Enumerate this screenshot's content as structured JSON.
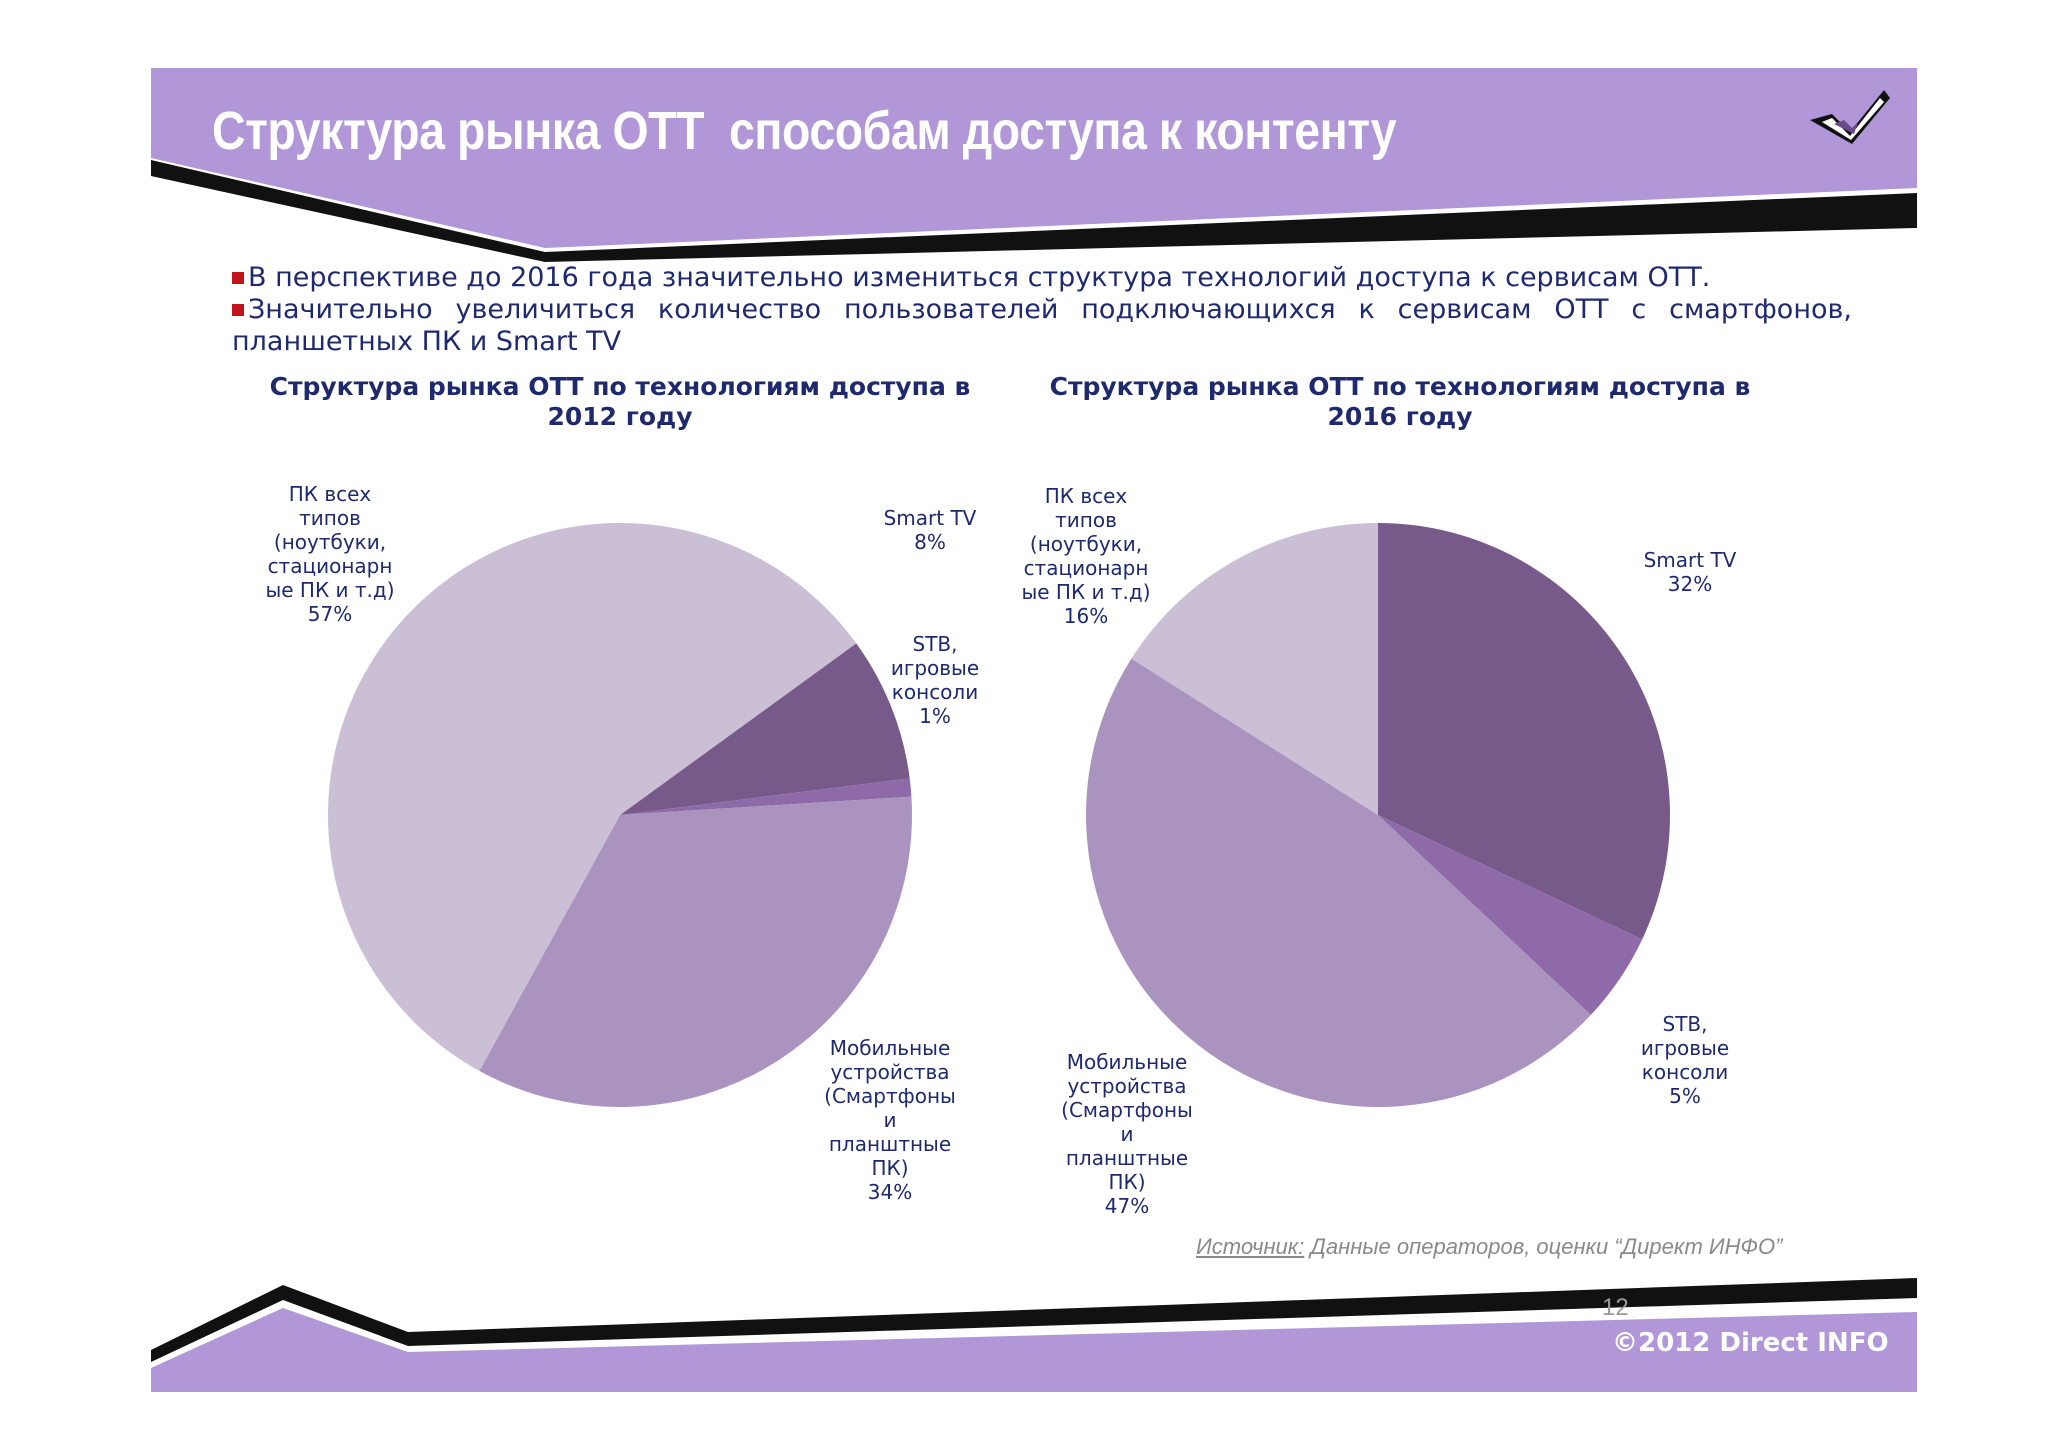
{
  "header": {
    "title": "Структура рынка ОТТ  способам доступа к контенту"
  },
  "bullets": [
    "В перспективе до 2016 года значительно измениться структура технологий доступа к сервисам ОТТ.",
    "Значительно увеличиться количество пользователей подключающихся к сервисам ОТТ с смартфонов, планшетных ПК и Smart TV"
  ],
  "colors": {
    "band": "#b196d8",
    "band_black": "#111111",
    "text_dark_blue": "#1f2a6e",
    "bullet_marker": "#c0141c"
  },
  "chart_data": [
    {
      "type": "pie",
      "title": "Структура рынка ОТТ по технологиям доступа в 2012 году",
      "slices": [
        {
          "label": "Smart TV",
          "value": 8,
          "color": "#785a8a"
        },
        {
          "label": "STB, игровые консоли",
          "value": 1,
          "color": "#8e6aa8"
        },
        {
          "label": "Мобильные устройства (Смартфоны и планштные ПК)",
          "value": 34,
          "color": "#ab93c0"
        },
        {
          "label": "ПК всех типов (ноутбуки, стационарные ПК и т.д)",
          "value": 57,
          "color": "#cbbfd6"
        }
      ],
      "labels": {
        "smart_tv": {
          "name": "Smart TV",
          "pct": "8%"
        },
        "stb": {
          "name": "STB,\nигровые\nконсоли",
          "pct": "1%"
        },
        "mobile": {
          "name": "Мобильные\nустройства\n(Смартфоны\nи\nпланштные\nПК)",
          "pct": "34%"
        },
        "pc": {
          "name": "ПК всех\nтипов\n(ноутбуки,\nстационарн\nые ПК и т.д)",
          "pct": "57%"
        }
      }
    },
    {
      "type": "pie",
      "title": "Структура рынка ОТТ по технологиям доступа в 2016 году",
      "slices": [
        {
          "label": "Smart TV",
          "value": 32,
          "color": "#785a8a"
        },
        {
          "label": "STB, игровые консоли",
          "value": 5,
          "color": "#8e6aa8"
        },
        {
          "label": "Мобильные устройства (Смартфоны и планштные ПК)",
          "value": 47,
          "color": "#ab93c0"
        },
        {
          "label": "ПК всех типов (ноутбуки, стационарные ПК и т.д)",
          "value": 16,
          "color": "#cbbfd6"
        }
      ],
      "labels": {
        "smart_tv": {
          "name": "Smart TV",
          "pct": "32%"
        },
        "stb": {
          "name": "STB,\nигровые\nконсоли",
          "pct": "5%"
        },
        "mobile": {
          "name": "Мобильные\nустройства\n(Смартфоны\nи\nпланштные\nПК)",
          "pct": "47%"
        },
        "pc": {
          "name": "ПК всех\nтипов\n(ноутбуки,\nстационарн\nые ПК и т.д)",
          "pct": "16%"
        }
      }
    }
  ],
  "source": {
    "prefix": "Источник:",
    "text": " Данные операторов, оценки “Директ ИНФО”"
  },
  "footer": {
    "page_number": "12",
    "copyright": "©2012 Direct INFO"
  }
}
